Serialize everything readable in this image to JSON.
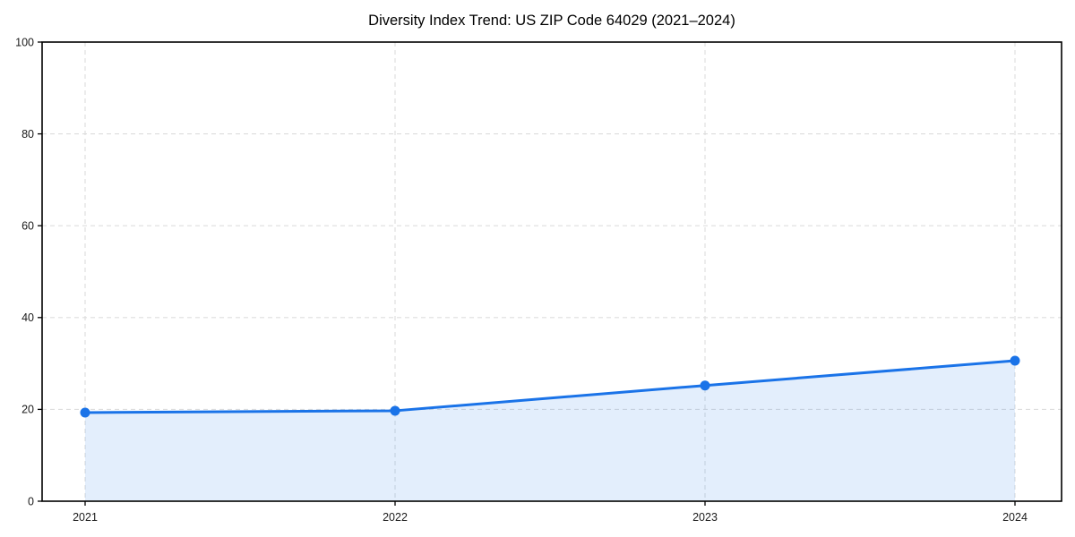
{
  "page": {
    "background": "#ffffff"
  },
  "chart_data": {
    "type": "area",
    "title": "Diversity Index Trend: US ZIP Code 64029 (2021–2024)",
    "categories": [
      "2021",
      "2022",
      "2023",
      "2024"
    ],
    "series": [
      {
        "values": [
          19.3,
          19.7,
          25.2,
          30.6
        ]
      }
    ],
    "xlabel": "",
    "ylabel": "",
    "ylim": [
      0,
      100
    ],
    "yticks": [
      0,
      20,
      40,
      60,
      80,
      100
    ],
    "grid": true,
    "grid_style": "dashed",
    "legend": "none",
    "colors": {
      "line": "#1a73e8",
      "marker": "#1a73e8",
      "fill": "rgba(26,115,232,0.12)",
      "grid": "#dddddd",
      "axis": "#000000",
      "tick_label": "#1a1a1a",
      "title": "#000000"
    }
  }
}
